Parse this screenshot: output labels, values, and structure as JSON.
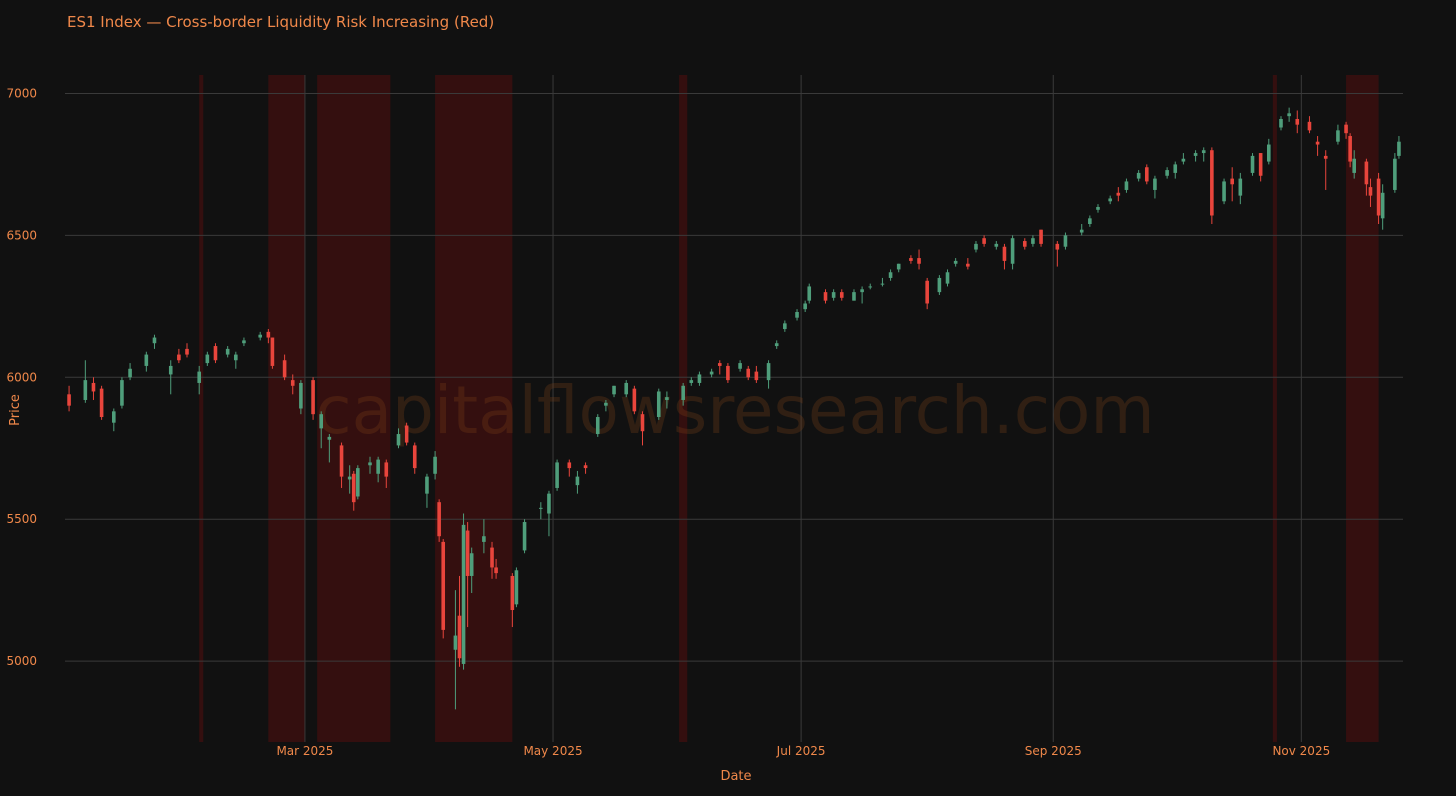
{
  "chart_data": {
    "type": "candlestick",
    "title": "ES1 Index — Cross-border Liquidity Risk Increasing (Red)",
    "xlabel": "Date",
    "ylabel": "Price",
    "watermark": "capitalflowsresearch.com",
    "increasing_color": "#4f9e7b",
    "decreasing_color": "#e8453c",
    "region_color": "#3b0f0f",
    "grid": true,
    "xlim": [
      "2025-01-01",
      "2025-11-26"
    ],
    "ylim": [
      4715,
      7065
    ],
    "xticks": [
      {
        "value": "2025-03-01",
        "label": "Mar 2025"
      },
      {
        "value": "2025-05-01",
        "label": "May 2025"
      },
      {
        "value": "2025-07-01",
        "label": "Jul 2025"
      },
      {
        "value": "2025-09-01",
        "label": "Sep 2025"
      },
      {
        "value": "2025-11-01",
        "label": "Nov 2025"
      }
    ],
    "yticks": [
      5000,
      5500,
      6000,
      6500,
      7000
    ],
    "regions": [
      {
        "start": "2025-02-03",
        "end": "2025-02-04"
      },
      {
        "start": "2025-02-20",
        "end": "2025-03-01"
      },
      {
        "start": "2025-03-04",
        "end": "2025-03-22"
      },
      {
        "start": "2025-04-02",
        "end": "2025-04-21"
      },
      {
        "start": "2025-06-01",
        "end": "2025-06-03"
      },
      {
        "start": "2025-10-25",
        "end": "2025-10-26"
      },
      {
        "start": "2025-11-12",
        "end": "2025-11-20"
      }
    ],
    "x": [
      "2025-01-02",
      "2025-01-06",
      "2025-01-08",
      "2025-01-10",
      "2025-01-13",
      "2025-01-15",
      "2025-01-17",
      "2025-01-21",
      "2025-01-23",
      "2025-01-27",
      "2025-01-29",
      "2025-01-31",
      "2025-02-03",
      "2025-02-05",
      "2025-02-07",
      "2025-02-10",
      "2025-02-12",
      "2025-02-14",
      "2025-02-18",
      "2025-02-20",
      "2025-02-21",
      "2025-02-24",
      "2025-02-26",
      "2025-02-28",
      "2025-03-03",
      "2025-03-05",
      "2025-03-07",
      "2025-03-10",
      "2025-03-12",
      "2025-03-13",
      "2025-03-14",
      "2025-03-17",
      "2025-03-19",
      "2025-03-21",
      "2025-03-24",
      "2025-03-26",
      "2025-03-28",
      "2025-03-31",
      "2025-04-02",
      "2025-04-03",
      "2025-04-04",
      "2025-04-07",
      "2025-04-08",
      "2025-04-09",
      "2025-04-10",
      "2025-04-11",
      "2025-04-14",
      "2025-04-16",
      "2025-04-17",
      "2025-04-21",
      "2025-04-22",
      "2025-04-24",
      "2025-04-28",
      "2025-04-30",
      "2025-05-02",
      "2025-05-05",
      "2025-05-07",
      "2025-05-09",
      "2025-05-12",
      "2025-05-14",
      "2025-05-16",
      "2025-05-19",
      "2025-05-21",
      "2025-05-23",
      "2025-05-27",
      "2025-05-29",
      "2025-06-02",
      "2025-06-04",
      "2025-06-06",
      "2025-06-09",
      "2025-06-11",
      "2025-06-13",
      "2025-06-16",
      "2025-06-18",
      "2025-06-20",
      "2025-06-23",
      "2025-06-25",
      "2025-06-27",
      "2025-06-30",
      "2025-07-02",
      "2025-07-03",
      "2025-07-07",
      "2025-07-09",
      "2025-07-11",
      "2025-07-14",
      "2025-07-16",
      "2025-07-18",
      "2025-07-21",
      "2025-07-23",
      "2025-07-25",
      "2025-07-28",
      "2025-07-30",
      "2025-08-01",
      "2025-08-04",
      "2025-08-06",
      "2025-08-08",
      "2025-08-11",
      "2025-08-13",
      "2025-08-15",
      "2025-08-18",
      "2025-08-20",
      "2025-08-22",
      "2025-08-25",
      "2025-08-27",
      "2025-08-29",
      "2025-09-02",
      "2025-09-04",
      "2025-09-08",
      "2025-09-10",
      "2025-09-12",
      "2025-09-15",
      "2025-09-17",
      "2025-09-19",
      "2025-09-22",
      "2025-09-24",
      "2025-09-26",
      "2025-09-29",
      "2025-10-01",
      "2025-10-03",
      "2025-10-06",
      "2025-10-08",
      "2025-10-10",
      "2025-10-13",
      "2025-10-15",
      "2025-10-17",
      "2025-10-20",
      "2025-10-22",
      "2025-10-24",
      "2025-10-27",
      "2025-10-29",
      "2025-10-31",
      "2025-11-03",
      "2025-11-05",
      "2025-11-07",
      "2025-11-10",
      "2025-11-12",
      "2025-11-13",
      "2025-11-14",
      "2025-11-17",
      "2025-11-18",
      "2025-11-20",
      "2025-11-21",
      "2025-11-24",
      "2025-11-25"
    ],
    "open": [
      5940,
      5920,
      5980,
      5960,
      5840,
      5900,
      6000,
      6040,
      6120,
      6010,
      6080,
      6100,
      5980,
      6050,
      6110,
      6080,
      6060,
      6120,
      6140,
      6160,
      6140,
      6060,
      5990,
      5890,
      5990,
      5820,
      5780,
      5760,
      5640,
      5660,
      5580,
      5690,
      5660,
      5700,
      5760,
      5830,
      5760,
      5590,
      5660,
      5560,
      5420,
      5040,
      5160,
      4990,
      5460,
      5300,
      5420,
      5400,
      5330,
      5300,
      5200,
      5390,
      5540,
      5520,
      5610,
      5700,
      5620,
      5690,
      5800,
      5900,
      5940,
      5940,
      5960,
      5870,
      5860,
      5920,
      5920,
      5980,
      5980,
      6010,
      6050,
      6040,
      6030,
      6030,
      6020,
      5990,
      6110,
      6170,
      6210,
      6240,
      6270,
      6300,
      6280,
      6300,
      6270,
      6300,
      6320,
      6330,
      6350,
      6380,
      6420,
      6420,
      6340,
      6300,
      6330,
      6400,
      6400,
      6450,
      6490,
      6460,
      6460,
      6400,
      6480,
      6470,
      6520,
      6470,
      6460,
      6510,
      6540,
      6590,
      6620,
      6650,
      6660,
      6700,
      6740,
      6660,
      6710,
      6720,
      6760,
      6780,
      6790,
      6800,
      6620,
      6700,
      6640,
      6720,
      6790,
      6760,
      6880,
      6920,
      6910,
      6900,
      6830,
      6780,
      6830,
      6890,
      6850,
      6720,
      6760,
      6670,
      6700,
      6560,
      6660,
      6780
    ],
    "high": [
      5970,
      6060,
      6000,
      5970,
      5890,
      6000,
      6050,
      6090,
      6150,
      6060,
      6100,
      6120,
      6040,
      6090,
      6120,
      6110,
      6090,
      6140,
      6160,
      6170,
      6140,
      6080,
      6010,
      5990,
      6000,
      5880,
      5800,
      5770,
      5690,
      5670,
      5690,
      5720,
      5720,
      5710,
      5820,
      5840,
      5770,
      5660,
      5740,
      5570,
      5430,
      5250,
      5300,
      5520,
      5490,
      5400,
      5500,
      5420,
      5360,
      5310,
      5330,
      5500,
      5560,
      5600,
      5710,
      5710,
      5670,
      5700,
      5870,
      5920,
      5970,
      5990,
      5970,
      5880,
      5960,
      5950,
      5980,
      6000,
      6020,
      6030,
      6060,
      6050,
      6060,
      6040,
      6040,
      6060,
      6130,
      6200,
      6240,
      6270,
      6330,
      6310,
      6310,
      6310,
      6310,
      6320,
      6330,
      6350,
      6380,
      6400,
      6430,
      6450,
      6350,
      6360,
      6380,
      6420,
      6420,
      6480,
      6500,
      6480,
      6470,
      6500,
      6490,
      6500,
      6520,
      6480,
      6510,
      6540,
      6570,
      6610,
      6640,
      6670,
      6700,
      6730,
      6750,
      6710,
      6740,
      6760,
      6790,
      6800,
      6810,
      6810,
      6700,
      6740,
      6720,
      6790,
      6790,
      6840,
      6920,
      6950,
      6940,
      6920,
      6850,
      6800,
      6890,
      6900,
      6860,
      6800,
      6770,
      6700,
      6720,
      6680,
      6790,
      6850
    ],
    "low": [
      5880,
      5910,
      5920,
      5850,
      5810,
      5890,
      5990,
      6020,
      6100,
      5940,
      6050,
      6070,
      5940,
      6040,
      6050,
      6070,
      6030,
      6110,
      6130,
      6120,
      6030,
      5990,
      5940,
      5870,
      5850,
      5750,
      5700,
      5610,
      5590,
      5530,
      5570,
      5660,
      5630,
      5610,
      5750,
      5760,
      5660,
      5540,
      5640,
      5420,
      5080,
      4830,
      4980,
      4970,
      5120,
      5240,
      5380,
      5290,
      5290,
      5120,
      5190,
      5380,
      5500,
      5440,
      5600,
      5650,
      5590,
      5660,
      5790,
      5880,
      5930,
      5930,
      5870,
      5760,
      5850,
      5890,
      5900,
      5970,
      5970,
      6000,
      6010,
      5980,
      6020,
      5990,
      5980,
      5960,
      6100,
      6160,
      6200,
      6230,
      6260,
      6260,
      6270,
      6270,
      6270,
      6260,
      6310,
      6320,
      6340,
      6370,
      6400,
      6380,
      6240,
      6290,
      6320,
      6390,
      6380,
      6440,
      6460,
      6450,
      6380,
      6380,
      6450,
      6460,
      6460,
      6390,
      6450,
      6500,
      6530,
      6580,
      6610,
      6620,
      6650,
      6690,
      6680,
      6630,
      6700,
      6700,
      6750,
      6760,
      6760,
      6540,
      6610,
      6620,
      6610,
      6710,
      6690,
      6750,
      6870,
      6900,
      6860,
      6860,
      6780,
      6660,
      6820,
      6840,
      6740,
      6700,
      6640,
      6600,
      6540,
      6520,
      6650,
      6770
    ],
    "close": [
      5900,
      5990,
      5950,
      5860,
      5880,
      5990,
      6030,
      6080,
      6140,
      6040,
      6060,
      6080,
      6020,
      6080,
      6060,
      6100,
      6080,
      6130,
      6150,
      6140,
      6040,
      6000,
      5970,
      5980,
      5870,
      5870,
      5790,
      5650,
      5650,
      5560,
      5680,
      5700,
      5710,
      5650,
      5800,
      5770,
      5680,
      5650,
      5720,
      5440,
      5110,
      5090,
      5010,
      5480,
      5300,
      5380,
      5440,
      5330,
      5310,
      5180,
      5320,
      5490,
      5540,
      5590,
      5700,
      5680,
      5650,
      5680,
      5860,
      5910,
      5970,
      5980,
      5880,
      5810,
      5950,
      5930,
      5970,
      5990,
      6010,
      6020,
      6040,
      5990,
      6050,
      6000,
      5990,
      6050,
      6120,
      6190,
      6230,
      6260,
      6320,
      6270,
      6300,
      6280,
      6300,
      6310,
      6320,
      6330,
      6370,
      6400,
      6410,
      6400,
      6260,
      6350,
      6370,
      6410,
      6390,
      6470,
      6470,
      6470,
      6410,
      6490,
      6460,
      6490,
      6470,
      6450,
      6500,
      6520,
      6560,
      6600,
      6630,
      6640,
      6690,
      6720,
      6690,
      6700,
      6730,
      6750,
      6770,
      6790,
      6800,
      6570,
      6690,
      6680,
      6700,
      6780,
      6710,
      6820,
      6910,
      6930,
      6890,
      6870,
      6820,
      6770,
      6870,
      6860,
      6760,
      6770,
      6680,
      6640,
      6570,
      6650,
      6770,
      6830
    ]
  }
}
